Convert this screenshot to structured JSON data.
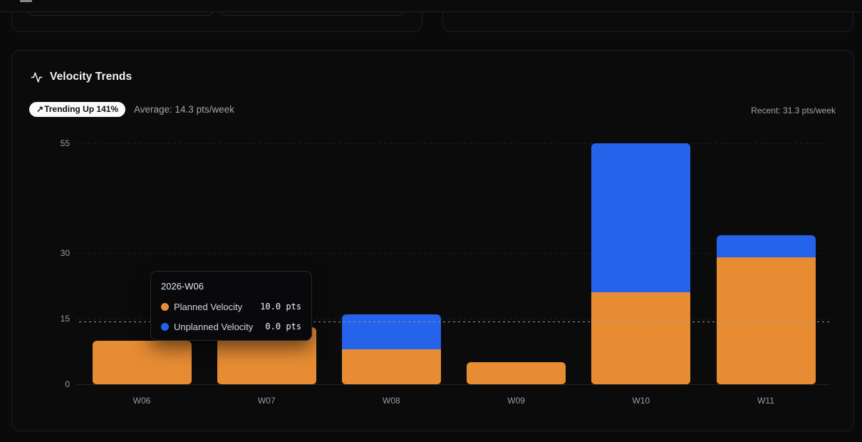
{
  "top_bar": {
    "icon": "cutoff-toolbar-icon"
  },
  "velocity_card": {
    "icon": "activity-icon",
    "title": "Velocity Trends",
    "badge": {
      "arrow": "↗",
      "label": "Trending Up 141%"
    },
    "average": "Average: 14.3 pts/week",
    "recent": "Recent: 31.3 pts/week"
  },
  "tooltip": {
    "title": "2026-W06",
    "rows": [
      {
        "label": "Planned Velocity",
        "value": "10.0 pts",
        "color": "#e78c33"
      },
      {
        "label": "Unplanned Velocity",
        "value": "0.0 pts",
        "color": "#2563eb"
      }
    ]
  },
  "chart_data": {
    "type": "bar",
    "stacked": true,
    "title": "Velocity Trends",
    "categories": [
      "W06",
      "W07",
      "W08",
      "W09",
      "W10",
      "W11"
    ],
    "series": [
      {
        "name": "Planned Velocity",
        "color": "#e78c33",
        "values": [
          10,
          13,
          8,
          5,
          21,
          29
        ]
      },
      {
        "name": "Unplanned Velocity",
        "color": "#2563eb",
        "values": [
          0,
          0,
          8,
          0,
          34,
          5
        ]
      }
    ],
    "totals": [
      10,
      13,
      16,
      5,
      55,
      34
    ],
    "yticks": [
      0,
      15,
      30,
      55
    ],
    "ylim": [
      0,
      55
    ],
    "average_reference_line": 14.3,
    "unit": "pts/week",
    "grid": true,
    "legend_position": "tooltip-only"
  },
  "colors": {
    "background": "#0a0a0a",
    "card_background": "#0b0b0c",
    "card_border": "#202024",
    "planned": "#e78c33",
    "unplanned": "#2563eb",
    "muted_text": "#9b9ba3",
    "badge_background": "#fafafa",
    "badge_text": "#111113",
    "average_line": "#9a9aa0"
  }
}
